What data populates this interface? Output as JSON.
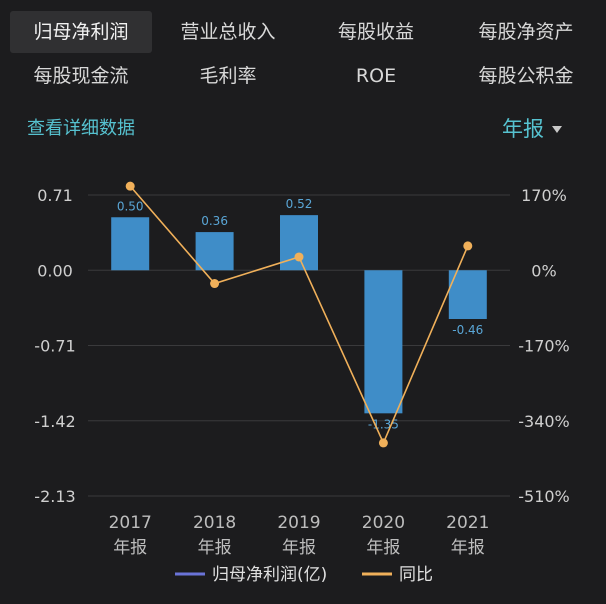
{
  "tabs": [
    {
      "label": "归母净利润",
      "active": true
    },
    {
      "label": "营业总收入",
      "active": false
    },
    {
      "label": "每股收益",
      "active": false
    },
    {
      "label": "每股净资产",
      "active": false
    },
    {
      "label": "每股现金流",
      "active": false
    },
    {
      "label": "毛利率",
      "active": false
    },
    {
      "label": "ROE",
      "active": false
    },
    {
      "label": "每股公积金",
      "active": false
    }
  ],
  "detail_link": "查看详细数据",
  "period": {
    "selected": "年报"
  },
  "colors": {
    "accent": "#56c2d0",
    "bar": "#3f8dc8",
    "line": "#f0b05a",
    "legend_bar": "#6a73d8"
  },
  "chart_data": {
    "type": "bar+line",
    "categories": [
      "2017",
      "2018",
      "2019",
      "2020",
      "2021"
    ],
    "category_sublabel": "年报",
    "series": [
      {
        "name": "归母净利润(亿)",
        "type": "bar",
        "axis": "left",
        "values": [
          0.5,
          0.36,
          0.52,
          -1.35,
          -0.46
        ],
        "labels": [
          "0.50",
          "0.36",
          "0.52",
          "-1.35",
          "-0.46"
        ]
      },
      {
        "name": "同比",
        "type": "line",
        "axis": "right",
        "values": [
          190,
          -30,
          30,
          -390,
          55
        ]
      }
    ],
    "y_left": {
      "ticks": [
        0.71,
        0.0,
        -0.71,
        -1.42,
        -2.13
      ],
      "tick_labels": [
        "0.71",
        "0.00",
        "-0.71",
        "-1.42",
        "-2.13"
      ],
      "range": [
        -2.13,
        0.71
      ]
    },
    "y_right": {
      "ticks": [
        170,
        0,
        -170,
        -340,
        -510
      ],
      "tick_labels": [
        "170%",
        "0%",
        "-170%",
        "-340%",
        "-510%"
      ],
      "range": [
        -510,
        170
      ]
    },
    "legend_position": "bottom-center",
    "grid": true
  }
}
